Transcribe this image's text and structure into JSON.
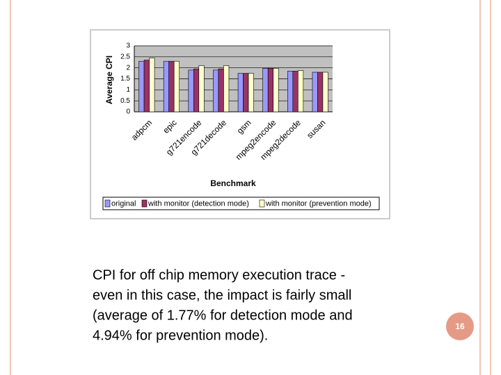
{
  "chart_data": {
    "type": "bar",
    "x_label": "Benchmark",
    "y_label": "Average CPI",
    "categories": [
      "adpcm",
      "epic",
      "g721encode",
      "g721decode",
      "gsm",
      "mpeg2encode",
      "mpeg2decode",
      "susan"
    ],
    "series": [
      {
        "name": "original",
        "color": "#9999ff",
        "values": [
          2.3,
          2.3,
          1.9,
          1.9,
          1.75,
          1.98,
          1.85,
          1.8
        ]
      },
      {
        "name": "with monitor (detection mode)",
        "color": "#993366",
        "values": [
          2.35,
          2.3,
          1.95,
          1.95,
          1.75,
          1.98,
          1.85,
          1.8
        ]
      },
      {
        "name": "with monitor (prevention mode)",
        "color": "#ffffcc",
        "values": [
          2.45,
          2.3,
          2.1,
          2.1,
          1.75,
          1.98,
          1.88,
          1.8
        ]
      }
    ],
    "ylim": [
      0,
      3
    ],
    "yticks": [
      0,
      0.5,
      1,
      1.5,
      2,
      2.5,
      3
    ],
    "grid": true,
    "legend": "bottom"
  },
  "slide": {
    "caption": [
      "CPI for off chip memory execution trace -",
      "even in this case, the impact is fairly small",
      "(average of 1.77% for detection mode and",
      "4.94% for prevention mode)."
    ],
    "page_number": "16"
  }
}
